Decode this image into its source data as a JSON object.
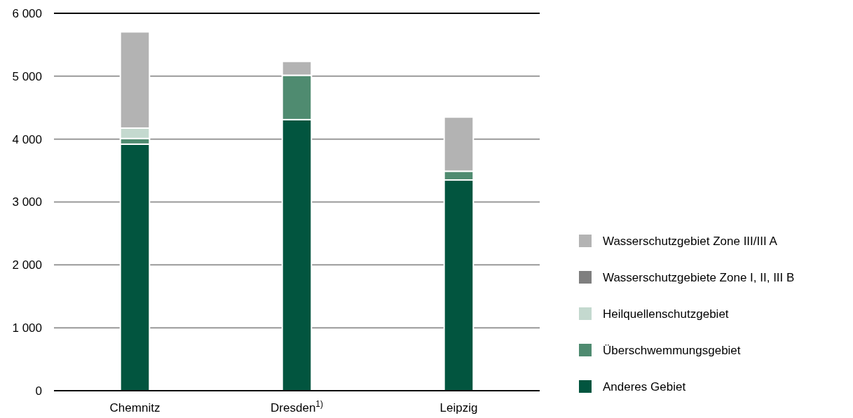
{
  "chart_data": {
    "type": "bar",
    "stacked": true,
    "categories": [
      "Chemnitz",
      "Dresden$^{1)}$",
      "Leipzig"
    ],
    "series": [
      {
        "name": "Anderes Gebiet",
        "color": "#02553f",
        "values": [
          3920,
          4310,
          3350
        ]
      },
      {
        "name": "Überschwemmungsgebiet",
        "color": "#4f8b70",
        "values": [
          90,
          705,
          140
        ]
      },
      {
        "name": "Heilquellenschutzgebiet",
        "color": "#c4d9cf",
        "values": [
          165,
          0,
          0
        ]
      },
      {
        "name": "Wasserschutzgebiete Zone I, II, III B",
        "color": "#7f7f7f",
        "values": [
          0,
          0,
          0
        ]
      },
      {
        "name": "Wasserschutzgebiet Zone III/III A",
        "color": "#b3b3b3",
        "values": [
          1530,
          220,
          860
        ]
      }
    ],
    "ylim": [
      0,
      6000
    ],
    "yticks": [
      {
        "value": 0,
        "label": "0"
      },
      {
        "value": 1000,
        "label": "1 000"
      },
      {
        "value": 2000,
        "label": "2 000"
      },
      {
        "value": 3000,
        "label": "3 000"
      },
      {
        "value": 4000,
        "label": "4 000"
      },
      {
        "value": 5000,
        "label": "5 000"
      },
      {
        "value": 6000,
        "label": "6 000"
      }
    ],
    "grid": "y",
    "legend": "right"
  }
}
